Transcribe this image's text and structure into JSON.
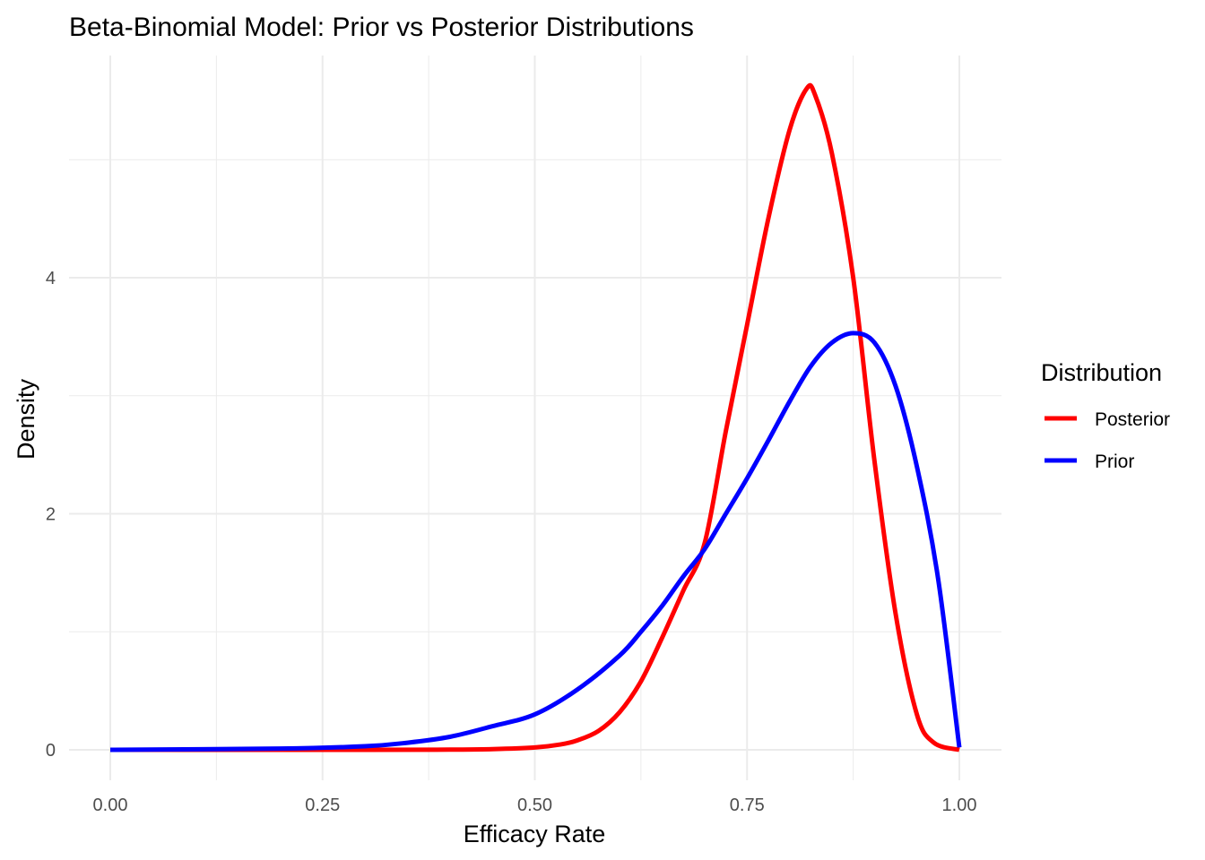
{
  "chart_data": {
    "type": "line",
    "title": "Beta-Binomial Model: Prior vs Posterior Distributions",
    "xlabel": "Efficacy Rate",
    "ylabel": "Density",
    "xlim": [
      0,
      1
    ],
    "ylim": [
      0,
      5.6
    ],
    "x_ticks": [
      {
        "value": 0,
        "label": "0.00"
      },
      {
        "value": 0.25,
        "label": "0.25"
      },
      {
        "value": 0.5,
        "label": "0.50"
      },
      {
        "value": 0.75,
        "label": "0.75"
      },
      {
        "value": 1,
        "label": "1.00"
      }
    ],
    "y_ticks": [
      {
        "value": 0,
        "label": "0"
      },
      {
        "value": 2,
        "label": "2"
      },
      {
        "value": 4,
        "label": "4"
      }
    ],
    "grid": true,
    "legend": {
      "title": "Distribution",
      "position": "right"
    },
    "series": [
      {
        "name": "Posterior",
        "color": "#ff0000",
        "x": [
          0.0,
          0.3,
          0.4,
          0.45,
          0.5,
          0.53,
          0.55,
          0.575,
          0.6,
          0.625,
          0.65,
          0.675,
          0.7,
          0.725,
          0.75,
          0.775,
          0.8,
          0.82,
          0.83,
          0.85,
          0.875,
          0.9,
          0.925,
          0.95,
          0.97,
          1.0
        ],
        "y": [
          0.0,
          0.0,
          0.002,
          0.006,
          0.02,
          0.045,
          0.08,
          0.16,
          0.32,
          0.58,
          0.95,
          1.35,
          1.75,
          2.7,
          3.6,
          4.5,
          5.25,
          5.6,
          5.55,
          5.05,
          4.0,
          2.45,
          1.15,
          0.3,
          0.06,
          0.0
        ]
      },
      {
        "name": "Prior",
        "color": "#0000ff",
        "x": [
          0.0,
          0.2,
          0.3,
          0.35,
          0.4,
          0.45,
          0.5,
          0.55,
          0.6,
          0.625,
          0.65,
          0.675,
          0.7,
          0.725,
          0.75,
          0.775,
          0.8,
          0.825,
          0.85,
          0.875,
          0.9,
          0.925,
          0.95,
          0.975,
          1.0
        ],
        "y": [
          0.0,
          0.01,
          0.03,
          0.06,
          0.11,
          0.2,
          0.3,
          0.51,
          0.8,
          1.0,
          1.22,
          1.47,
          1.7,
          2.0,
          2.3,
          2.62,
          2.95,
          3.25,
          3.45,
          3.53,
          3.45,
          3.08,
          2.4,
          1.45,
          0.02
        ]
      }
    ]
  }
}
